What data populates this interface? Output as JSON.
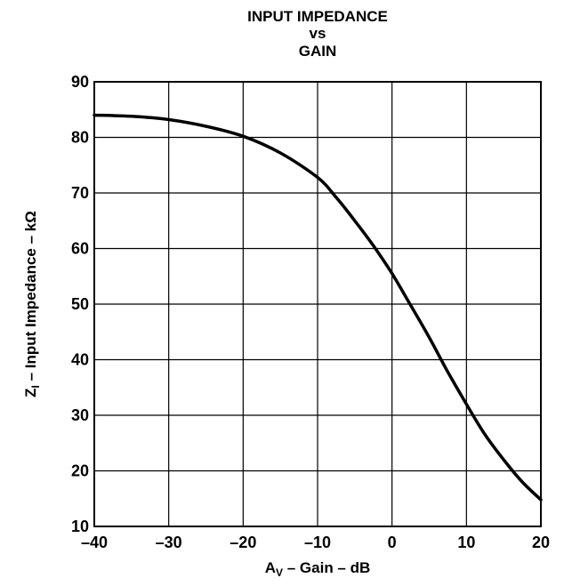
{
  "chart_data": {
    "type": "line",
    "title_lines": [
      "INPUT IMPEDANCE",
      "vs",
      "GAIN"
    ],
    "xlabel": {
      "main": "A",
      "sub": "V",
      "rest": " – Gain – dB"
    },
    "ylabel": {
      "main": "Z",
      "sub": "I",
      "rest": " – Input Impedance – kΩ"
    },
    "xlim": [
      -40,
      20
    ],
    "ylim": [
      10,
      90
    ],
    "x_ticks": [
      -40,
      -30,
      -20,
      -10,
      0,
      10,
      20
    ],
    "y_ticks": [
      10,
      20,
      30,
      40,
      50,
      60,
      70,
      80,
      90
    ],
    "x_tick_labels": [
      "–40",
      "–30",
      "–20",
      "–10",
      "0",
      "10",
      "20"
    ],
    "y_tick_labels": [
      "10",
      "20",
      "30",
      "40",
      "50",
      "60",
      "70",
      "80",
      "90"
    ],
    "grid": true,
    "series": [
      {
        "x": [
          -40,
          -35,
          -30,
          -25,
          -20,
          -15,
          -10,
          -7.5,
          -5,
          -2.5,
          0,
          2.5,
          5,
          7.5,
          10,
          12.5,
          15,
          17.5,
          20
        ],
        "y": [
          84,
          83.8,
          83.2,
          82,
          80.2,
          77.2,
          72.8,
          69.2,
          65,
          60.5,
          55.5,
          49.8,
          44,
          37.8,
          32,
          26.5,
          22,
          18,
          14.8
        ]
      }
    ]
  }
}
